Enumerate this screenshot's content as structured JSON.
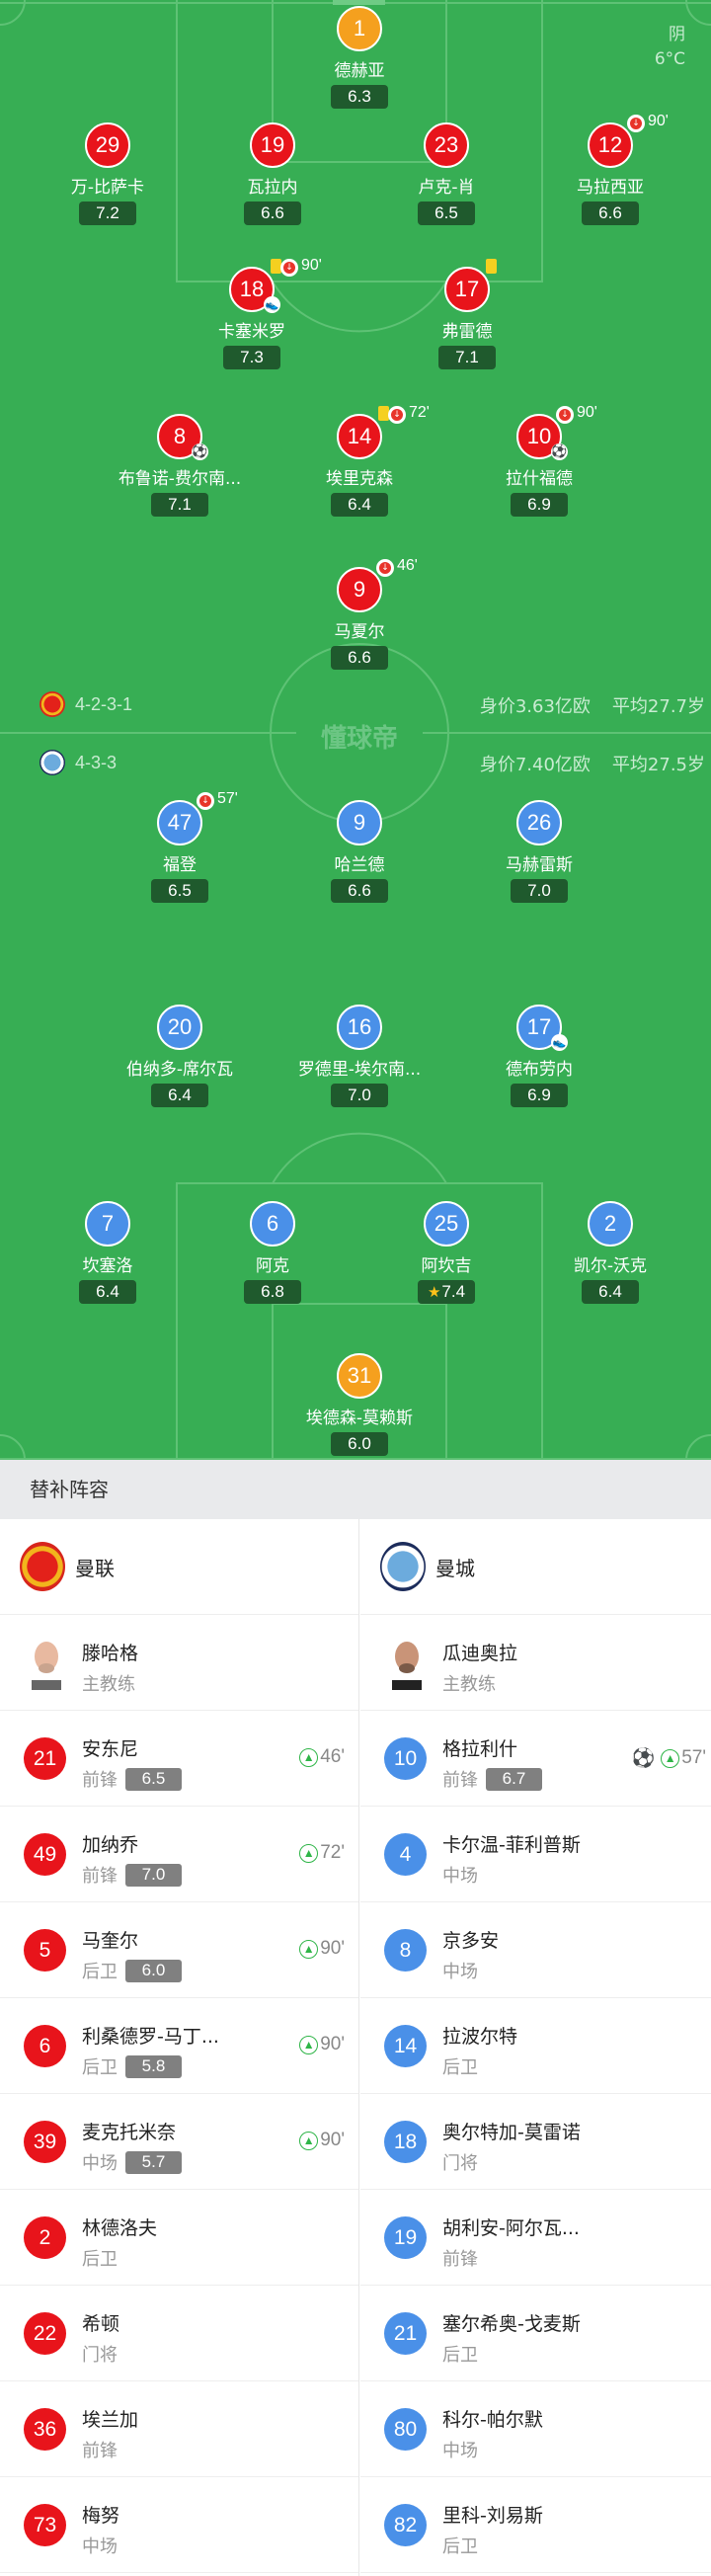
{
  "weather": {
    "condition": "阴",
    "temperature": "6°C"
  },
  "watermark": "懂球帝",
  "colors": {
    "home": "#e8141b",
    "away": "#4a90e8",
    "goalkeeper": "#f5a01e",
    "pitch": "#37ae54"
  },
  "home": {
    "team": "曼联",
    "formation": "4-2-3-1",
    "value": "身价3.63亿欧",
    "avg_age": "平均27.7岁",
    "players": [
      {
        "number": "1",
        "name": "德赫亚",
        "rating": "6.3",
        "goalkeeper": true
      },
      {
        "number": "29",
        "name": "万-比萨卡",
        "rating": "7.2"
      },
      {
        "number": "19",
        "name": "瓦拉内",
        "rating": "6.6"
      },
      {
        "number": "23",
        "name": "卢克-肖",
        "rating": "6.5"
      },
      {
        "number": "12",
        "name": "马拉西亚",
        "rating": "6.6",
        "sub_off": "90'"
      },
      {
        "number": "18",
        "name": "卡塞米罗",
        "rating": "7.3",
        "yellow_card": true,
        "sub_off": "90'",
        "assist": true
      },
      {
        "number": "17",
        "name": "弗雷德",
        "rating": "7.1",
        "yellow_card": true
      },
      {
        "number": "8",
        "name": "布鲁诺-费尔南...",
        "rating": "7.1",
        "goal": true
      },
      {
        "number": "14",
        "name": "埃里克森",
        "rating": "6.4",
        "yellow_card": true,
        "sub_off": "72'"
      },
      {
        "number": "10",
        "name": "拉什福德",
        "rating": "6.9",
        "sub_off": "90'",
        "goal": true
      },
      {
        "number": "9",
        "name": "马夏尔",
        "rating": "6.6",
        "sub_off": "46'"
      }
    ]
  },
  "away": {
    "team": "曼城",
    "formation": "4-3-3",
    "value": "身价7.40亿欧",
    "avg_age": "平均27.5岁",
    "players": [
      {
        "number": "47",
        "name": "福登",
        "rating": "6.5",
        "sub_off": "57'"
      },
      {
        "number": "9",
        "name": "哈兰德",
        "rating": "6.6"
      },
      {
        "number": "26",
        "name": "马赫雷斯",
        "rating": "7.0"
      },
      {
        "number": "20",
        "name": "伯纳多-席尔瓦",
        "rating": "6.4"
      },
      {
        "number": "16",
        "name": "罗德里-埃尔南...",
        "rating": "7.0"
      },
      {
        "number": "17",
        "name": "德布劳内",
        "rating": "6.9",
        "assist": true
      },
      {
        "number": "7",
        "name": "坎塞洛",
        "rating": "6.4"
      },
      {
        "number": "6",
        "name": "阿克",
        "rating": "6.8"
      },
      {
        "number": "25",
        "name": "阿坎吉",
        "rating": "7.4",
        "man_of_match": true
      },
      {
        "number": "2",
        "name": "凯尔-沃克",
        "rating": "6.4"
      },
      {
        "number": "31",
        "name": "埃德森-莫赖斯",
        "rating": "6.0",
        "goalkeeper": true
      }
    ]
  },
  "subs": {
    "title": "替补阵容",
    "home": {
      "team": "曼联",
      "coach": {
        "name": "滕哈格",
        "role": "主教练"
      },
      "players": [
        {
          "number": "21",
          "name": "安东尼",
          "position": "前锋",
          "rating": "6.5",
          "sub_in": "46'"
        },
        {
          "number": "49",
          "name": "加纳乔",
          "position": "前锋",
          "rating": "7.0",
          "sub_in": "72'"
        },
        {
          "number": "5",
          "name": "马奎尔",
          "position": "后卫",
          "rating": "6.0",
          "sub_in": "90'"
        },
        {
          "number": "6",
          "name": "利桑德罗-马丁...",
          "position": "后卫",
          "rating": "5.8",
          "sub_in": "90'"
        },
        {
          "number": "39",
          "name": "麦克托米奈",
          "position": "中场",
          "rating": "5.7",
          "sub_in": "90'"
        },
        {
          "number": "2",
          "name": "林德洛夫",
          "position": "后卫"
        },
        {
          "number": "22",
          "name": "希顿",
          "position": "门将"
        },
        {
          "number": "36",
          "name": "埃兰加",
          "position": "前锋"
        },
        {
          "number": "73",
          "name": "梅努",
          "position": "中场"
        }
      ]
    },
    "away": {
      "team": "曼城",
      "coach": {
        "name": "瓜迪奥拉",
        "role": "主教练"
      },
      "players": [
        {
          "number": "10",
          "name": "格拉利什",
          "position": "前锋",
          "rating": "6.7",
          "sub_in": "57'",
          "goal": true
        },
        {
          "number": "4",
          "name": "卡尔温-菲利普斯",
          "position": "中场"
        },
        {
          "number": "8",
          "name": "京多安",
          "position": "中场"
        },
        {
          "number": "14",
          "name": "拉波尔特",
          "position": "后卫"
        },
        {
          "number": "18",
          "name": "奥尔特加-莫雷诺",
          "position": "门将"
        },
        {
          "number": "19",
          "name": "胡利安-阿尔瓦...",
          "position": "前锋"
        },
        {
          "number": "21",
          "name": "塞尔希奥-戈麦斯",
          "position": "后卫"
        },
        {
          "number": "80",
          "name": "科尔-帕尔默",
          "position": "中场"
        },
        {
          "number": "82",
          "name": "里科-刘易斯",
          "position": "后卫"
        }
      ]
    }
  }
}
